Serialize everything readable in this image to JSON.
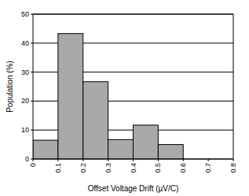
{
  "chart_data": {
    "type": "histogram",
    "xlabel": "Offset Voltage Drift (µV/C)",
    "ylabel": "Population (%)",
    "bins": [
      0,
      0.1,
      0.2,
      0.3,
      0.4,
      0.5,
      0.6,
      0.7,
      0.8
    ],
    "values": [
      6.5,
      43.3,
      26.7,
      6.7,
      11.7,
      5,
      0,
      0
    ],
    "color": "#a9a9a9",
    "xlim": [
      0,
      0.8
    ],
    "xticks": [
      0,
      0.1,
      0.2,
      0.3,
      0.4,
      0.5,
      0.6,
      0.7,
      0.8
    ],
    "ylim": [
      0,
      50
    ],
    "yticks": [
      0,
      10,
      20,
      30,
      40,
      50
    ],
    "grid": true
  }
}
